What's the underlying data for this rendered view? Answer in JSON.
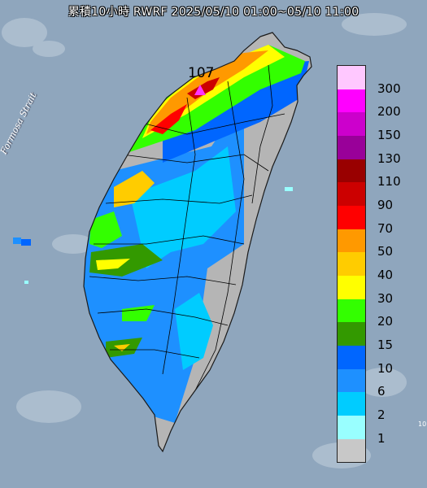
{
  "title": "累積10小時 RWRF 2025/05/10 01:00~05/10 11:00",
  "map_label": "Formosa Strait",
  "max_value_label": "107",
  "corner_label": "10",
  "legend": {
    "levels": [
      "300",
      "200",
      "150",
      "130",
      "110",
      "90",
      "70",
      "50",
      "40",
      "30",
      "20",
      "15",
      "10",
      "6",
      "2",
      "1",
      ""
    ],
    "colors": [
      "#ffc8ff",
      "#ff00ff",
      "#cc00cc",
      "#990099",
      "#990000",
      "#cc0000",
      "#ff0000",
      "#ff9900",
      "#ffcc00",
      "#ffff00",
      "#33ff00",
      "#339900",
      "#0066ff",
      "#1e90ff",
      "#00ccff",
      "#99ffff",
      "#c8c8c8"
    ]
  },
  "colors": {
    "sea": "#8fa6bd",
    "land": "#b5b5b5",
    "marker": "#ff33ff"
  }
}
